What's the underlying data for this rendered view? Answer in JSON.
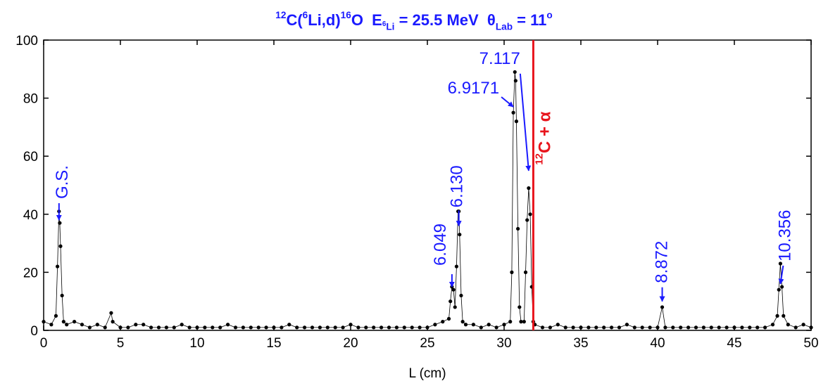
{
  "chart_data": {
    "type": "scatter-line",
    "title_parts": [
      {
        "text": "12",
        "style": "sup"
      },
      {
        "text": "C(",
        "style": "normal"
      },
      {
        "text": "6",
        "style": "sup"
      },
      {
        "text": "Li,d)",
        "style": "normal"
      },
      {
        "text": "16",
        "style": "sup"
      },
      {
        "text": "O  E",
        "style": "normal"
      },
      {
        "text": "6",
        "style": "subsup"
      },
      {
        "text": "Li",
        "style": "sub"
      },
      {
        "text": " = 25.5 MeV  θ",
        "style": "normal"
      },
      {
        "text": "Lab",
        "style": "sub"
      },
      {
        "text": " = 11",
        "style": "normal"
      },
      {
        "text": "o",
        "style": "sup"
      }
    ],
    "title_color": "#1a1aff",
    "x_label": "L (cm)",
    "xlim": [
      0,
      50
    ],
    "xticks": [
      0,
      5,
      10,
      15,
      20,
      25,
      30,
      35,
      40,
      45,
      50
    ],
    "ylim": [
      0,
      100
    ],
    "yticks": [
      0,
      20,
      40,
      60,
      80,
      100
    ],
    "grid": false,
    "series": [
      {
        "color": "#000000",
        "x": [
          0,
          0.5,
          0.8,
          0.9,
          1.0,
          1.05,
          1.1,
          1.2,
          1.3,
          1.5,
          2,
          2.5,
          3,
          3.5,
          4,
          4.4,
          4.5,
          5,
          5.5,
          6,
          6.5,
          7,
          7.5,
          8,
          8.5,
          9,
          9.5,
          10,
          10.5,
          11,
          11.5,
          12,
          12.5,
          13,
          13.5,
          14,
          14.5,
          15,
          15.5,
          16,
          16.5,
          17,
          17.5,
          18,
          18.5,
          19,
          19.5,
          20,
          20.5,
          21,
          21.5,
          22,
          22.5,
          23,
          23.5,
          24,
          24.5,
          25,
          25.5,
          26,
          26.4,
          26.5,
          26.6,
          26.7,
          26.8,
          26.9,
          27,
          27.05,
          27.1,
          27.2,
          27.3,
          27.5,
          28,
          28.5,
          29,
          29.5,
          30,
          30.4,
          30.5,
          30.6,
          30.7,
          30.75,
          30.8,
          30.9,
          31,
          31.1,
          31.3,
          31.4,
          31.5,
          31.6,
          31.7,
          31.8,
          31.9,
          32,
          32.5,
          33,
          33.5,
          34,
          34.5,
          35,
          35.5,
          36,
          36.5,
          37,
          37.5,
          38,
          38.5,
          39,
          39.5,
          40,
          40.3,
          40.5,
          41,
          41.5,
          42,
          42.5,
          43,
          43.5,
          44,
          44.5,
          45,
          45.5,
          46,
          46.5,
          47,
          47.5,
          47.8,
          47.9,
          48,
          48.1,
          48.2,
          48.5,
          49,
          49.5,
          50
        ],
        "values": [
          3,
          2,
          5,
          22,
          41,
          37,
          29,
          12,
          3,
          2,
          3,
          2,
          1,
          2,
          1,
          6,
          3,
          1,
          1,
          2,
          2,
          1,
          1,
          1,
          1,
          2,
          1,
          1,
          1,
          1,
          1,
          2,
          1,
          1,
          1,
          1,
          1,
          1,
          1,
          2,
          1,
          1,
          1,
          1,
          1,
          1,
          1,
          2,
          1,
          1,
          1,
          1,
          1,
          1,
          1,
          1,
          1,
          1,
          2,
          3,
          4,
          10,
          15,
          14,
          8,
          22,
          41,
          41,
          33,
          12,
          3,
          2,
          2,
          1,
          2,
          1,
          2,
          3,
          20,
          75,
          89,
          86,
          72,
          35,
          8,
          3,
          3,
          20,
          38,
          49,
          40,
          15,
          3,
          2,
          1,
          1,
          2,
          1,
          1,
          1,
          1,
          1,
          1,
          1,
          1,
          2,
          1,
          1,
          1,
          1,
          8,
          1,
          1,
          1,
          1,
          1,
          1,
          1,
          1,
          1,
          1,
          1,
          1,
          1,
          1,
          2,
          5,
          14,
          23,
          15,
          5,
          2,
          1,
          2,
          1
        ]
      }
    ],
    "annotations": [
      {
        "label": "G.S.",
        "x": 1.0,
        "y": 38,
        "rotated": true
      },
      {
        "label": "6.049",
        "x": 26.6,
        "y": 15,
        "rotated": true
      },
      {
        "label": "6.130",
        "x": 27.05,
        "y": 36,
        "rotated": true
      },
      {
        "label": "7.117",
        "x": 31.6,
        "y": 55,
        "rotated": false
      },
      {
        "label": "6.9171",
        "x": 30.6,
        "y": 77,
        "rotated": false
      },
      {
        "label": "8.872",
        "x": 40.3,
        "y": 10,
        "rotated": true
      },
      {
        "label": "10.356",
        "x": 48.0,
        "y": 16,
        "rotated": true
      }
    ],
    "annotation_color": "#1a1aff",
    "threshold": {
      "x": 31.9,
      "color": "#e8141c",
      "label_parts": [
        {
          "text": "12",
          "style": "sup"
        },
        {
          "text": "C + α",
          "style": "normal"
        }
      ]
    }
  }
}
